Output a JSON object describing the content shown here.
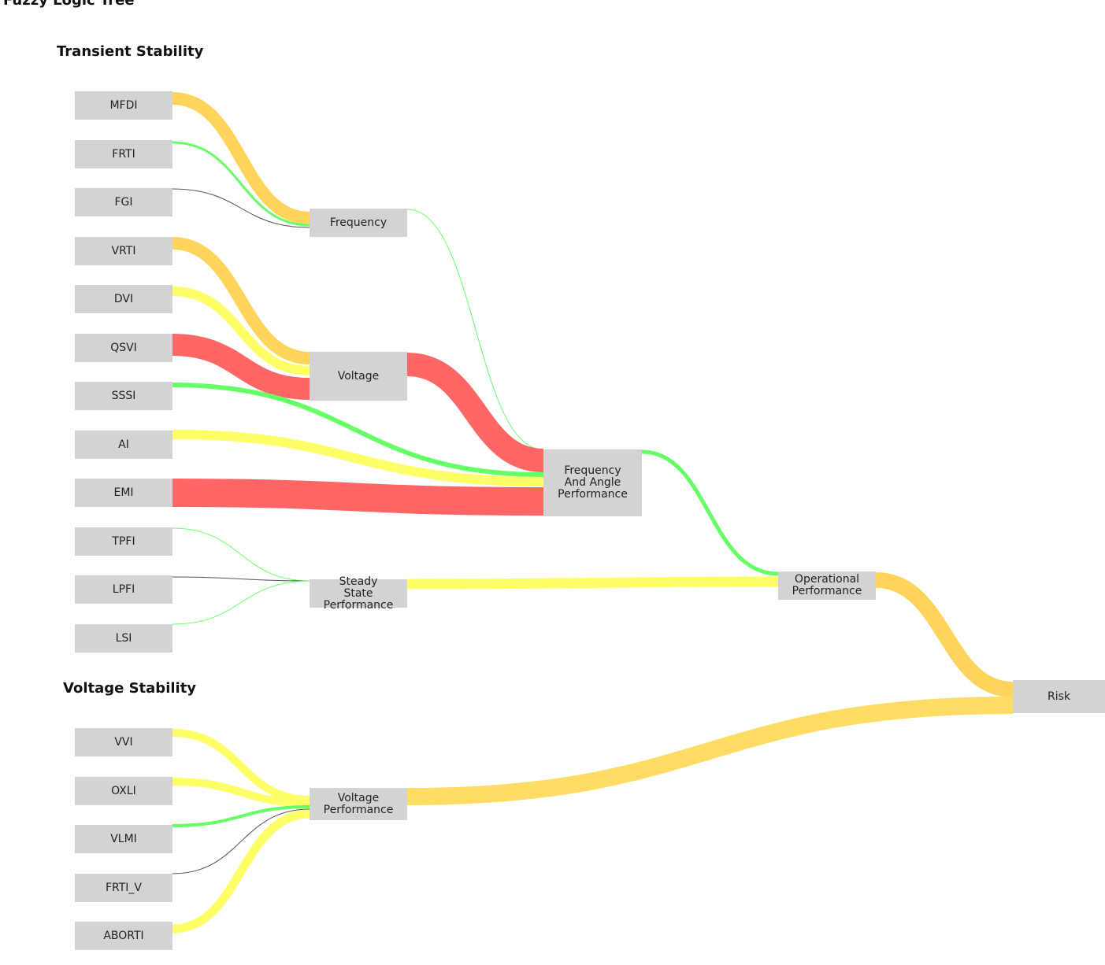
{
  "title": "Fuzzy Logic Tree",
  "sections": [
    "Transient Stability",
    "Voltage Stability"
  ],
  "nodes": [
    "MFDI",
    "FRTI",
    "FGI",
    "VRTI",
    "DVI",
    "QSVI",
    "SSSI",
    "AI",
    "EMI",
    "TPFI",
    "LPFI",
    "LSI",
    "Frequency",
    "Voltage",
    "Steady State Performance",
    "Frequency And Angle Performance",
    "Operational Performance",
    "Risk",
    "VVI",
    "OXLI",
    "VLMI",
    "FRTI_V",
    "ABORTI",
    "Voltage Performance"
  ]
}
